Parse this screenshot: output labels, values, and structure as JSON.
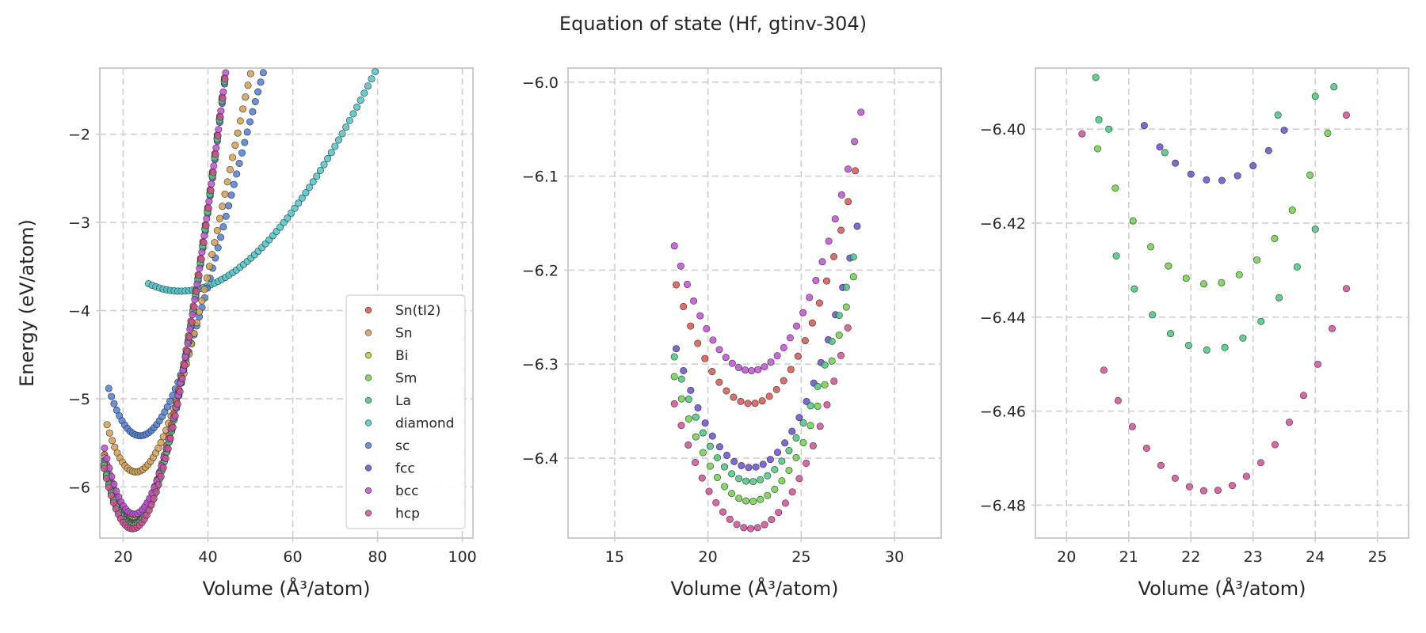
{
  "figure": {
    "title": "Equation of state (Hf, gtinv-304)"
  },
  "colors": {
    "Sn(tI2)": "#d9534f",
    "Sn": "#d4a04f",
    "Bi": "#c4c832",
    "Sm": "#6fd24a",
    "La": "#45c97c",
    "diamond": "#4cc5c8",
    "sc": "#4f7fd6",
    "fcc": "#6a4fcf",
    "bcc": "#bf4fd6",
    "hcp": "#d24f97"
  },
  "chart_data": [
    {
      "type": "scatter",
      "title": "",
      "xlabel": "Volume (Å³/atom)",
      "ylabel": "Energy (eV/atom)",
      "xlim": [
        14.5,
        102.5
      ],
      "ylim": [
        -6.58,
        -1.25
      ],
      "xticks": [
        20,
        40,
        60,
        80,
        100
      ],
      "yticks": [
        -6,
        -5,
        -4,
        -3,
        -2
      ],
      "grid": true,
      "legend": {
        "position": "lower-right",
        "entries": [
          "Sn(tI2)",
          "Sn",
          "Bi",
          "Sm",
          "La",
          "diamond",
          "sc",
          "fcc",
          "bcc",
          "hcp"
        ]
      },
      "series": [
        {
          "name": "diamond",
          "curve": {
            "v0": 33.5,
            "e0": -3.78,
            "a": 0.00145,
            "b": 5.9e-06,
            "from": 26.0,
            "to": 101.0,
            "n": 88
          }
        },
        {
          "name": "sc",
          "curve": {
            "v0": 24.0,
            "e0": -5.42,
            "a": 0.0088,
            "b": 0.000135,
            "from": 16.6,
            "to": 73.8,
            "n": 92
          }
        },
        {
          "name": "Sn",
          "curve": {
            "v0": 23.0,
            "e0": -5.83,
            "a": 0.0105,
            "b": 0.00016,
            "from": 16.2,
            "to": 70.0,
            "n": 90
          }
        },
        {
          "name": "Sn(tI2)",
          "curve": {
            "v0": 22.4,
            "e0": -6.34,
            "a": 0.0142,
            "b": 0.00016,
            "from": 15.6,
            "to": 66.0,
            "n": 90
          }
        },
        {
          "name": "Bi",
          "curve": {
            "v0": 22.4,
            "e0": -6.38,
            "a": 0.0142,
            "b": 0.00016,
            "from": 15.6,
            "to": 66.0,
            "n": 90
          }
        },
        {
          "name": "fcc",
          "curve": {
            "v0": 22.4,
            "e0": -6.41,
            "a": 0.0142,
            "b": 0.00016,
            "from": 15.6,
            "to": 66.0,
            "n": 90
          }
        },
        {
          "name": "Sm",
          "curve": {
            "v0": 22.2,
            "e0": -6.43,
            "a": 0.0142,
            "b": 0.00016,
            "from": 15.5,
            "to": 66.0,
            "n": 90
          }
        },
        {
          "name": "La",
          "curve": {
            "v0": 22.2,
            "e0": -6.445,
            "a": 0.0142,
            "b": 0.00016,
            "from": 15.5,
            "to": 66.0,
            "n": 90
          }
        },
        {
          "name": "bcc",
          "curve": {
            "v0": 22.6,
            "e0": -6.31,
            "a": 0.0142,
            "b": 0.00016,
            "from": 15.6,
            "to": 66.6,
            "n": 92
          }
        },
        {
          "name": "hcp",
          "curve": {
            "v0": 22.2,
            "e0": -6.475,
            "a": 0.0142,
            "b": 0.00016,
            "from": 15.5,
            "to": 66.4,
            "n": 92
          }
        }
      ]
    },
    {
      "type": "scatter",
      "title": "",
      "xlabel": "Volume (Å³/atom)",
      "ylabel": "",
      "xlim": [
        12.5,
        32.5
      ],
      "ylim": [
        -6.485,
        -5.985
      ],
      "xticks": [
        15,
        20,
        25,
        30
      ],
      "yticks": [
        -6.4,
        -6.3,
        -6.2,
        -6.1,
        -6.0
      ],
      "grid": true,
      "series": [
        {
          "name": "bcc",
          "curve": {
            "v0": 22.3,
            "e0": -6.307,
            "k": 0.0079,
            "from": 18.2,
            "to": 28.2,
            "n": 30
          }
        },
        {
          "name": "Sn(tI2)",
          "curve": {
            "v0": 22.3,
            "e0": -6.342,
            "k": 0.0079,
            "from": 18.3,
            "to": 27.9,
            "n": 26
          }
        },
        {
          "name": "fcc",
          "curve": {
            "v0": 22.3,
            "e0": -6.41,
            "k": 0.0079,
            "from": 18.3,
            "to": 28.0,
            "n": 26
          }
        },
        {
          "name": "La",
          "curve": {
            "v0": 22.3,
            "e0": -6.425,
            "k": 0.0079,
            "from": 18.2,
            "to": 27.8,
            "n": 26
          }
        },
        {
          "name": "Sm",
          "curve": {
            "v0": 22.3,
            "e0": -6.446,
            "k": 0.0079,
            "from": 18.2,
            "to": 27.8,
            "n": 26
          }
        },
        {
          "name": "hcp",
          "curve": {
            "v0": 22.3,
            "e0": -6.475,
            "k": 0.0079,
            "from": 18.2,
            "to": 27.5,
            "n": 26
          }
        }
      ]
    },
    {
      "type": "scatter",
      "title": "",
      "xlabel": "Volume (Å³/atom)",
      "ylabel": "",
      "xlim": [
        19.5,
        25.5
      ],
      "ylim": [
        -6.487,
        -6.387
      ],
      "xticks": [
        20,
        21,
        22,
        23,
        24,
        25
      ],
      "yticks": [
        -6.48,
        -6.46,
        -6.44,
        -6.42,
        -6.4
      ],
      "grid": true,
      "series": [
        {
          "name": "fcc",
          "curve": {
            "v0": 22.4,
            "e0": -6.411,
            "k": 0.0089,
            "from": 21.25,
            "to": 23.5,
            "n": 10
          }
        },
        {
          "name": "Sm",
          "curve": {
            "v0": 22.3,
            "e0": -6.433,
            "k": 0.0089,
            "from": 20.5,
            "to": 24.2,
            "n": 14
          }
        },
        {
          "name": "La",
          "curve": {
            "v0": 22.3,
            "e0": -6.447,
            "k": 0.0089,
            "from": 20.8,
            "to": 24.0,
            "n": 12
          }
        },
        {
          "name": "hcp",
          "curve": {
            "v0": 22.3,
            "e0": -6.477,
            "k": 0.0089,
            "from": 20.6,
            "to": 24.5,
            "n": 18
          }
        },
        {
          "name": "La",
          "points": [
            [
              20.47,
              -6.389
            ],
            [
              20.52,
              -6.398
            ],
            [
              20.68,
              -6.4
            ],
            [
              21.58,
              -6.405
            ],
            [
              23.4,
              -6.397
            ],
            [
              24.0,
              -6.393
            ],
            [
              24.3,
              -6.391
            ]
          ]
        },
        {
          "name": "hcp",
          "points": [
            [
              20.25,
              -6.401
            ],
            [
              24.5,
              -6.397
            ]
          ]
        }
      ]
    }
  ]
}
